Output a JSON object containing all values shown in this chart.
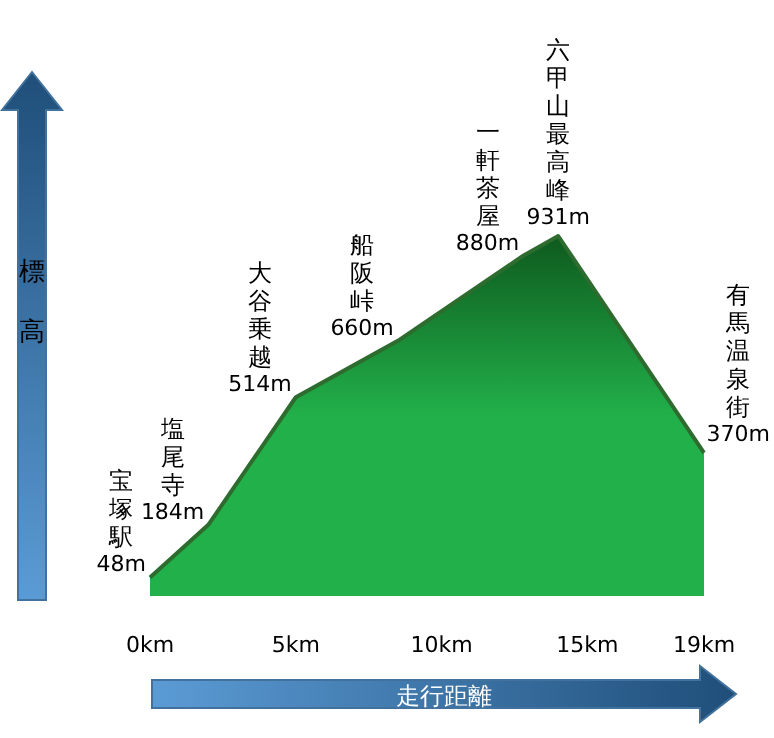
{
  "chart_data": {
    "type": "area",
    "xlabel": "走行距離",
    "ylabel": "標高",
    "x": [
      0,
      2,
      5,
      8.5,
      12.8,
      14,
      19
    ],
    "values": [
      48,
      184,
      514,
      660,
      880,
      931,
      370
    ],
    "value_labels": [
      "48m",
      "184m",
      "514m",
      "660m",
      "880m",
      "931m",
      "370m"
    ],
    "color": "#22b04a",
    "xlim": [
      0,
      19
    ],
    "xticks": [
      {
        "value": 0,
        "label": "0km"
      },
      {
        "value": 5,
        "label": "5km"
      },
      {
        "value": 10,
        "label": "10km"
      },
      {
        "value": 15,
        "label": "15km"
      },
      {
        "value": 19,
        "label": "19km"
      }
    ],
    "annotations": [
      {
        "text": "宝塚駅",
        "x": 0,
        "y": 48
      },
      {
        "text": "塩尾寺",
        "x": 2,
        "y": 184
      },
      {
        "text": "大谷乗越",
        "x": 5,
        "y": 514
      },
      {
        "text": "船阪峠",
        "x": 8.5,
        "y": 660
      },
      {
        "text": "一軒茶屋",
        "x": 12.8,
        "y": 880
      },
      {
        "text": "六甲山最高峰",
        "x": 14,
        "y": 931
      },
      {
        "text": "有馬温泉街",
        "x": 19,
        "y": 370
      }
    ],
    "grid": false
  }
}
